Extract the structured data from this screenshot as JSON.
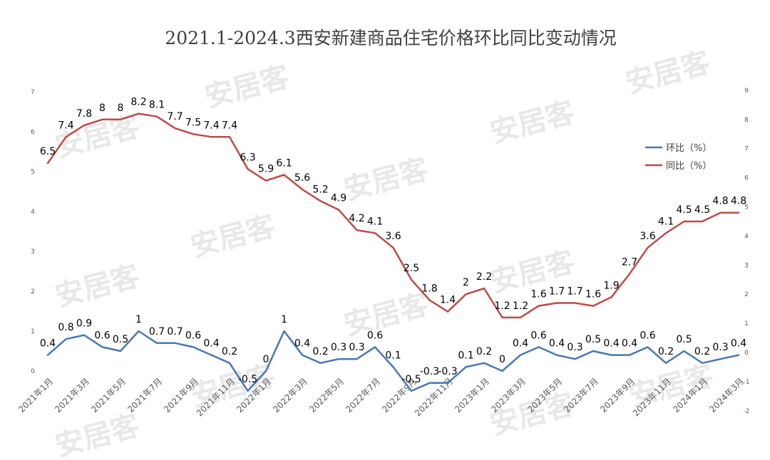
{
  "chart_data": {
    "type": "line",
    "title": "2021.1-2024.3西安新建商品住宅价格环比同比变动情况",
    "categories": [
      "2021年1月",
      "2021年2月",
      "2021年3月",
      "2021年4月",
      "2021年5月",
      "2021年6月",
      "2021年7月",
      "2021年8月",
      "2021年9月",
      "2021年10月",
      "2021年11月",
      "2021年12月",
      "2022年1月",
      "2022年2月",
      "2022年3月",
      "2022年4月",
      "2022年5月",
      "2022年6月",
      "2022年7月",
      "2022年8月",
      "2022年9月",
      "2022年10月",
      "2022年11月",
      "2022年12月",
      "2023年1月",
      "2023年2月",
      "2023年3月",
      "2023年4月",
      "2023年5月",
      "2023年6月",
      "2023年7月",
      "2023年8月",
      "2023年9月",
      "2023年10月",
      "2023年11月",
      "2023年12月",
      "2024年1月",
      "2024年2月",
      "2024年3月"
    ],
    "x_tick_labels": [
      "2021年1月",
      "2021年3月",
      "2021年5月",
      "2021年7月",
      "2021年9月",
      "2021年11月",
      "2022年1月",
      "2022年3月",
      "2022年5月",
      "2022年7月",
      "2022年9月",
      "2022年11月",
      "2023年1月",
      "2023年3月",
      "2023年5月",
      "2023年7月",
      "2023年9月",
      "2023年11月",
      "2024年1月",
      "2024年3月"
    ],
    "series": [
      {
        "name": "环比（%）",
        "axis": "left",
        "color": "#4a78b5",
        "values": [
          0.4,
          0.8,
          0.9,
          0.6,
          0.5,
          1,
          0.7,
          0.7,
          0.6,
          0.4,
          0.2,
          -0.5,
          0,
          1,
          0.4,
          0.2,
          0.3,
          0.3,
          0.6,
          0.1,
          -0.5,
          -0.3,
          -0.3,
          0.1,
          0.2,
          0,
          0.4,
          0.6,
          0.4,
          0.3,
          0.5,
          0.4,
          0.4,
          0.6,
          0.2,
          0.5,
          0.2,
          0.3,
          0.4
        ]
      },
      {
        "name": "同比（%）",
        "axis": "right",
        "color": "#be4b48",
        "values": [
          6.5,
          7.4,
          7.8,
          8,
          8,
          8.2,
          8.1,
          7.7,
          7.5,
          7.4,
          7.4,
          6.3,
          5.9,
          6.1,
          5.6,
          5.2,
          4.9,
          4.2,
          4.1,
          3.6,
          2.5,
          1.8,
          1.4,
          2,
          2.2,
          1.2,
          1.2,
          1.6,
          1.7,
          1.7,
          1.6,
          1.9,
          2.7,
          3.6,
          4.1,
          4.5,
          4.5,
          4.8,
          4.8
        ]
      }
    ],
    "left_axis": {
      "min": 0,
      "max": 7,
      "ticks": [
        "0",
        "1",
        "2",
        "3",
        "4",
        "5",
        "6",
        "7"
      ]
    },
    "right_axis": {
      "min": -2,
      "max": 9,
      "ticks": [
        "-2",
        "-1",
        "0",
        "1",
        "2",
        "3",
        "4",
        "5",
        "6",
        "7",
        "8",
        "9"
      ]
    },
    "legend_position": "right",
    "watermark": "安居客"
  }
}
